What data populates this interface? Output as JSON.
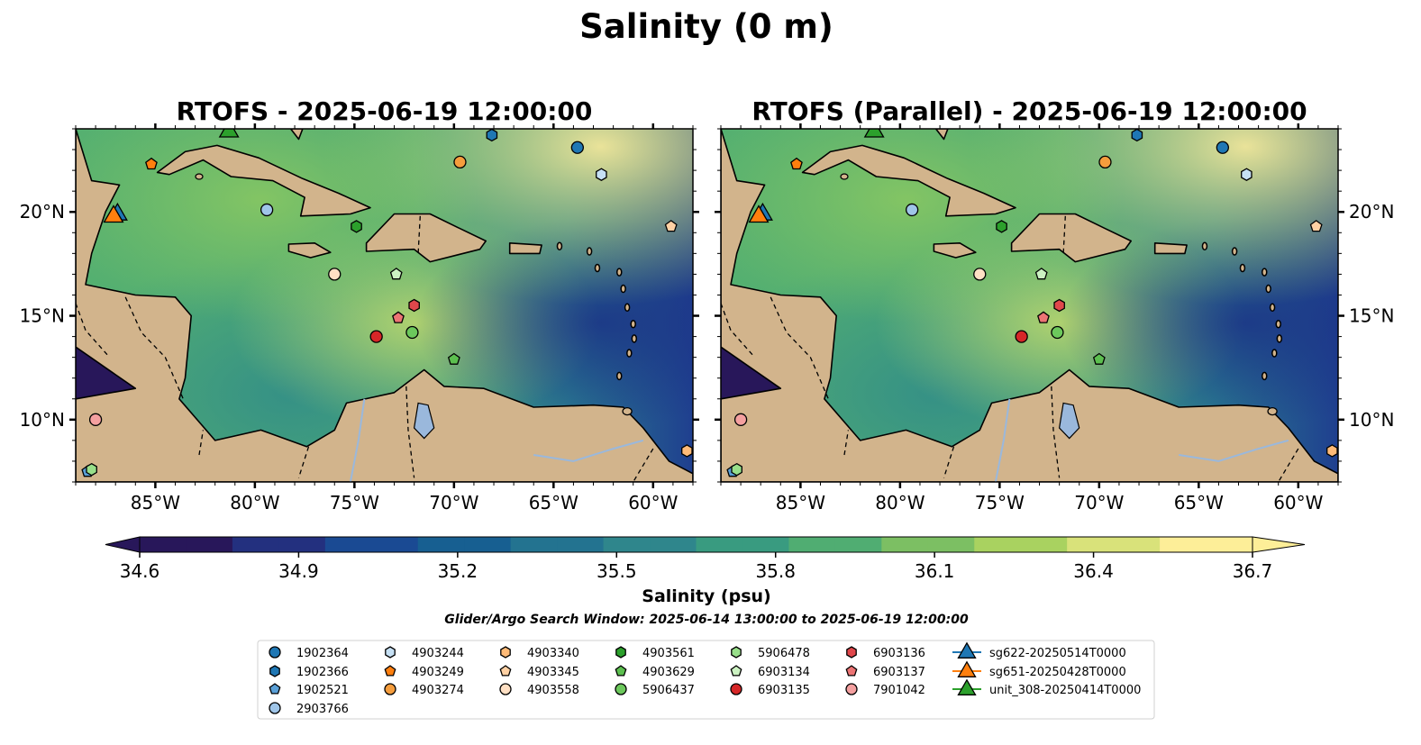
{
  "figure": {
    "suptitle": "Salinity (0 m)",
    "window_text": "Glider/Argo Search Window: 2025-06-14 13:00:00 to 2025-06-19 12:00:00"
  },
  "panels": [
    {
      "title": "RTOFS - 2025-06-19 12:00:00",
      "lat_labels_side": "left"
    },
    {
      "title": "RTOFS (Parallel) - 2025-06-19 12:00:00",
      "lat_labels_side": "right"
    }
  ],
  "map": {
    "extent": {
      "lon": [
        -89,
        -58
      ],
      "lat": [
        7,
        24
      ]
    },
    "lon_ticks": [
      -85,
      -80,
      -75,
      -70,
      -65,
      -60
    ],
    "lon_tick_labels": [
      "85°W",
      "80°W",
      "75°W",
      "70°W",
      "65°W",
      "60°W"
    ],
    "lat_ticks": [
      10,
      15,
      20
    ],
    "lat_tick_labels": [
      "10°N",
      "15°N",
      "20°N"
    ],
    "land_color": "#d2b48c",
    "lake_color": "#9ab8dc"
  },
  "colorbar": {
    "label": "Salinity (psu)",
    "min": 34.6,
    "max": 36.7,
    "tick_values": [
      34.6,
      34.9,
      35.2,
      35.5,
      35.8,
      36.1,
      36.4,
      36.7
    ],
    "tick_labels": [
      "34.6",
      "34.9",
      "35.2",
      "35.5",
      "35.8",
      "36.1",
      "36.4",
      "36.7"
    ],
    "colormap": [
      "#28175a",
      "#23307f",
      "#1a4a93",
      "#175f91",
      "#237390",
      "#2f868c",
      "#399b80",
      "#50ad72",
      "#7cbf63",
      "#a9d260",
      "#d9e27a",
      "#fdee98"
    ],
    "extend": "both"
  },
  "platforms": [
    {
      "id": "1902364",
      "marker": "circle",
      "color": "#1f77b4",
      "lon": -63.8,
      "lat": 23.1
    },
    {
      "id": "1902366",
      "marker": "hexagon",
      "color": "#1f77b4",
      "lon": -68.1,
      "lat": 23.7
    },
    {
      "id": "1902521",
      "marker": "pentagon",
      "color": "#5aa0d7",
      "lon": -88.4,
      "lat": 7.5
    },
    {
      "id": "2903766",
      "marker": "circle",
      "color": "#9fc5e8",
      "lon": -79.4,
      "lat": 20.1
    },
    {
      "id": "4903244",
      "marker": "hexagon",
      "color": "#c6e0f4",
      "lon": -62.6,
      "lat": 21.8
    },
    {
      "id": "4903249",
      "marker": "pentagon",
      "color": "#ff7f0e",
      "lon": -85.2,
      "lat": 22.3
    },
    {
      "id": "4903274",
      "marker": "circle",
      "color": "#f59d3d",
      "lon": -69.7,
      "lat": 22.4
    },
    {
      "id": "4903340",
      "marker": "hexagon",
      "color": "#ffbb78",
      "lon": -58.3,
      "lat": 8.5
    },
    {
      "id": "4903345",
      "marker": "pentagon",
      "color": "#ffd1a4",
      "lon": -59.1,
      "lat": 19.3
    },
    {
      "id": "4903558",
      "marker": "circle",
      "color": "#ffe0c4",
      "lon": -76.0,
      "lat": 17.0
    },
    {
      "id": "4903561",
      "marker": "hexagon",
      "color": "#2ca02c",
      "lon": -74.9,
      "lat": 19.3
    },
    {
      "id": "4903629",
      "marker": "pentagon",
      "color": "#5cbf4f",
      "lon": -70.0,
      "lat": 12.9
    },
    {
      "id": "5906437",
      "marker": "circle",
      "color": "#6cc85c",
      "lon": -72.1,
      "lat": 14.2
    },
    {
      "id": "5906478",
      "marker": "hexagon",
      "color": "#98df8a",
      "lon": -88.2,
      "lat": 7.6
    },
    {
      "id": "6903134",
      "marker": "pentagon",
      "color": "#ccf2c2",
      "lon": -72.9,
      "lat": 17.0
    },
    {
      "id": "6903135",
      "marker": "circle",
      "color": "#d62728",
      "lon": -73.9,
      "lat": 14.0
    },
    {
      "id": "6903136",
      "marker": "hexagon",
      "color": "#e0474b",
      "lon": -72.0,
      "lat": 15.5
    },
    {
      "id": "6903137",
      "marker": "pentagon",
      "color": "#ec7474",
      "lon": -72.8,
      "lat": 14.9
    },
    {
      "id": "7901042",
      "marker": "circle",
      "color": "#f4a0a0",
      "lon": -88.0,
      "lat": 10.0
    }
  ],
  "gliders": [
    {
      "id": "sg622-20250514T0000",
      "color": "#1f77b4",
      "lon": -86.9,
      "lat": 20.0
    },
    {
      "id": "sg651-20250428T0000",
      "color": "#ff7f0e",
      "lon": -87.1,
      "lat": 19.9
    },
    {
      "id": "unit_308-20250414T0000",
      "color": "#2ca02c",
      "lon": -81.3,
      "lat": 24.0
    }
  ]
}
